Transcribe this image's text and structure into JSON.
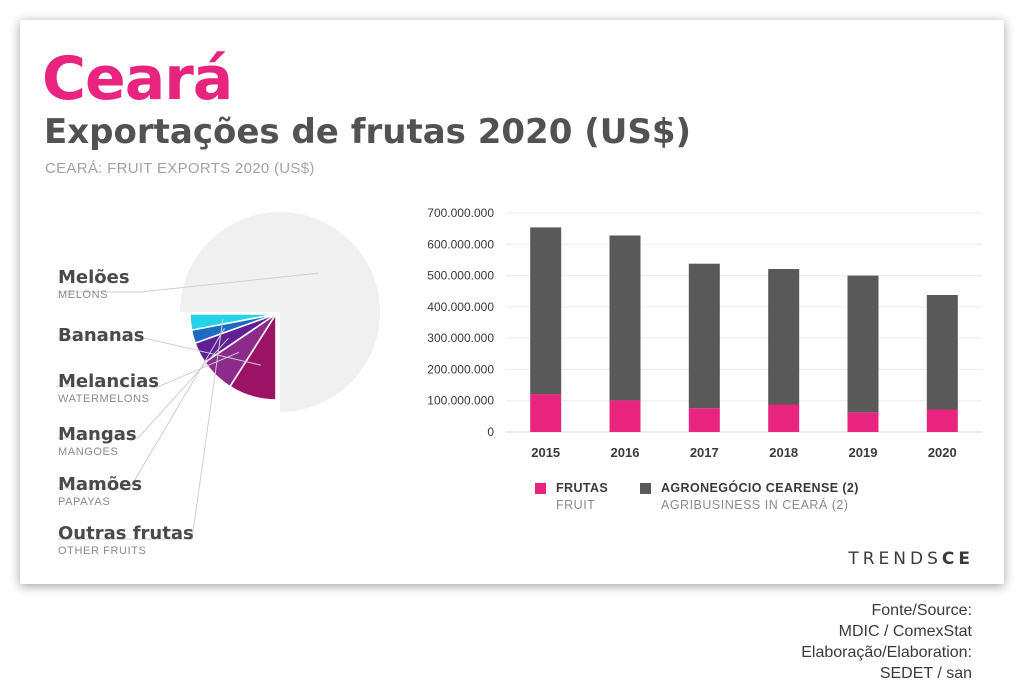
{
  "header": {
    "title": "Ceará",
    "subtitle": "Exportações de frutas 2020 (US$)",
    "subtitle_en": "CEARÁ: FRUIT EXPORTS 2020 (US$)"
  },
  "pie_labels": [
    {
      "pt": "Melões",
      "en": "MELONS"
    },
    {
      "pt": "Bananas",
      "en": ""
    },
    {
      "pt": "Melancias",
      "en": "WATERMELONS"
    },
    {
      "pt": "Mangas",
      "en": "MANGOES"
    },
    {
      "pt": "Mamões",
      "en": "PAPAYAS"
    },
    {
      "pt": "Outras frutas",
      "en": "OTHER FRUITS"
    }
  ],
  "legend": [
    {
      "label": "FRUTAS",
      "label_en": "FRUIT",
      "color": "#e8247f"
    },
    {
      "label": "AGRONEGÓCIO CEARENSE (2)",
      "label_en": "AGRIBUSINESS IN CEARÁ (2)",
      "color": "#595959"
    }
  ],
  "brand": {
    "text_a": "TRENDS",
    "text_b": "CE"
  },
  "source": {
    "line1": "Fonte/Source:",
    "line2": "MDIC / ComexStat",
    "line3": "Elaboração/Elaboration:",
    "line4": "SEDET / san"
  },
  "chart_data": [
    {
      "type": "pie",
      "categories": [
        "Melões",
        "Bananas",
        "Melancias",
        "Mangas",
        "Mamões",
        "Outras frutas"
      ],
      "values": [
        75.0,
        9.0,
        6.5,
        4.0,
        2.5,
        3.0
      ],
      "value_unit": "percent (estimated)",
      "colors": [
        "#f0f0f0",
        "#9b1266",
        "#8e2a8c",
        "#5f1f95",
        "#1b6cc2",
        "#24d2ea"
      ],
      "start_angle_deg": 180,
      "direction": "clockwise"
    },
    {
      "type": "bar",
      "stacked": true,
      "categories": [
        "2015",
        "2016",
        "2017",
        "2018",
        "2019",
        "2020"
      ],
      "series": [
        {
          "name": "FRUTAS",
          "values": [
            121000000,
            101000000,
            76000000,
            88000000,
            63000000,
            72000000
          ],
          "color": "#e8247f"
        },
        {
          "name": "AGRONEGÓCIO CEARENSE (2)",
          "values": [
            533000000,
            527000000,
            462000000,
            433000000,
            437000000,
            366000000
          ],
          "color": "#595959"
        }
      ],
      "ylim": [
        0,
        700000000
      ],
      "yticks": [
        "0",
        "100.000.000",
        "200.000.000",
        "300.000.000",
        "400.000.000",
        "500.000.000",
        "600.000.000",
        "700.000.000"
      ],
      "grid": true,
      "legend_position": "bottom"
    }
  ]
}
